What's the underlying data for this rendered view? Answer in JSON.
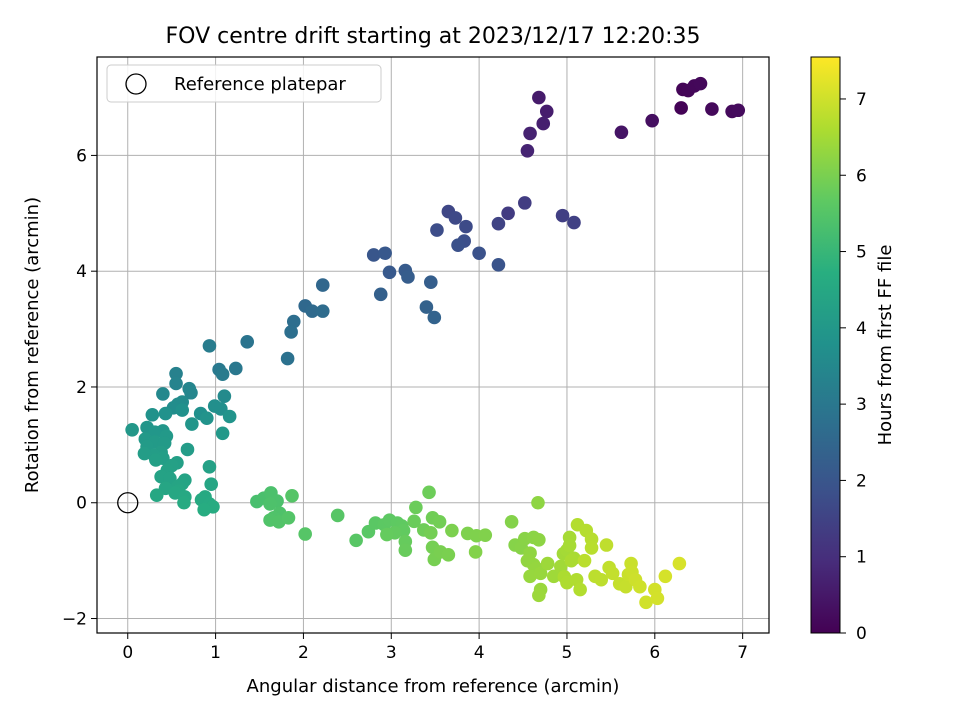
{
  "chart_data": {
    "type": "scatter",
    "title": "FOV centre drift starting at 2023/12/17 12:20:35",
    "xlabel": "Angular distance from reference (arcmin)",
    "ylabel": "Rotation from reference (arcmin)",
    "xlim": [
      -0.35,
      7.3
    ],
    "ylim": [
      -2.25,
      7.7
    ],
    "xticks": [
      0,
      1,
      2,
      3,
      4,
      5,
      6,
      7
    ],
    "yticks": [
      -2,
      0,
      2,
      4,
      6
    ],
    "grid": true,
    "legend": {
      "position": "top-left",
      "entries": [
        "Reference platepar"
      ]
    },
    "reference_point": {
      "x": 0,
      "y": 0,
      "label": "Reference platepar"
    },
    "colorbar": {
      "label": "Hours from first FF file",
      "colormap": "viridis",
      "range": [
        0,
        7.55
      ],
      "ticks": [
        0,
        1,
        2,
        3,
        4,
        5,
        6,
        7
      ]
    },
    "points": [
      {
        "x": 6.3,
        "y": 6.82,
        "c": 0.05
      },
      {
        "x": 6.32,
        "y": 7.14,
        "c": 0.08
      },
      {
        "x": 6.38,
        "y": 7.12,
        "c": 0.1
      },
      {
        "x": 6.45,
        "y": 7.2,
        "c": 0.12
      },
      {
        "x": 6.52,
        "y": 7.24,
        "c": 0.15
      },
      {
        "x": 6.65,
        "y": 6.8,
        "c": 0.18
      },
      {
        "x": 6.88,
        "y": 6.76,
        "c": 0.2
      },
      {
        "x": 6.95,
        "y": 6.78,
        "c": 0.22
      },
      {
        "x": 5.97,
        "y": 6.6,
        "c": 0.3
      },
      {
        "x": 5.62,
        "y": 6.4,
        "c": 0.4
      },
      {
        "x": 4.68,
        "y": 7.0,
        "c": 0.55
      },
      {
        "x": 4.77,
        "y": 6.76,
        "c": 0.6
      },
      {
        "x": 4.73,
        "y": 6.55,
        "c": 0.65
      },
      {
        "x": 4.58,
        "y": 6.38,
        "c": 0.7
      },
      {
        "x": 4.55,
        "y": 6.08,
        "c": 0.75
      },
      {
        "x": 4.33,
        "y": 5.0,
        "c": 1.3
      },
      {
        "x": 4.52,
        "y": 5.18,
        "c": 1.35
      },
      {
        "x": 4.95,
        "y": 4.96,
        "c": 1.4
      },
      {
        "x": 5.08,
        "y": 4.84,
        "c": 1.45
      },
      {
        "x": 4.22,
        "y": 4.82,
        "c": 1.5
      },
      {
        "x": 3.65,
        "y": 5.03,
        "c": 1.6
      },
      {
        "x": 3.73,
        "y": 4.92,
        "c": 1.65
      },
      {
        "x": 3.85,
        "y": 4.77,
        "c": 1.7
      },
      {
        "x": 3.52,
        "y": 4.71,
        "c": 1.75
      },
      {
        "x": 3.83,
        "y": 4.52,
        "c": 1.8
      },
      {
        "x": 3.76,
        "y": 4.45,
        "c": 1.85
      },
      {
        "x": 4.0,
        "y": 4.31,
        "c": 1.9
      },
      {
        "x": 4.22,
        "y": 4.11,
        "c": 1.95
      },
      {
        "x": 2.8,
        "y": 4.28,
        "c": 2.0
      },
      {
        "x": 2.93,
        "y": 4.31,
        "c": 2.05
      },
      {
        "x": 2.98,
        "y": 3.98,
        "c": 2.1
      },
      {
        "x": 3.16,
        "y": 4.01,
        "c": 2.15
      },
      {
        "x": 3.19,
        "y": 3.9,
        "c": 2.2
      },
      {
        "x": 3.45,
        "y": 3.81,
        "c": 2.25
      },
      {
        "x": 2.88,
        "y": 3.6,
        "c": 2.3
      },
      {
        "x": 3.4,
        "y": 3.38,
        "c": 2.35
      },
      {
        "x": 3.49,
        "y": 3.2,
        "c": 2.4
      },
      {
        "x": 2.22,
        "y": 3.76,
        "c": 2.5
      },
      {
        "x": 2.02,
        "y": 3.4,
        "c": 2.55
      },
      {
        "x": 2.1,
        "y": 3.31,
        "c": 2.6
      },
      {
        "x": 2.22,
        "y": 3.31,
        "c": 2.65
      },
      {
        "x": 1.89,
        "y": 3.13,
        "c": 2.7
      },
      {
        "x": 1.86,
        "y": 2.95,
        "c": 2.75
      },
      {
        "x": 1.82,
        "y": 2.49,
        "c": 2.8
      },
      {
        "x": 1.36,
        "y": 2.78,
        "c": 2.9
      },
      {
        "x": 1.23,
        "y": 2.32,
        "c": 3.0
      },
      {
        "x": 1.04,
        "y": 2.3,
        "c": 3.05
      },
      {
        "x": 1.08,
        "y": 2.22,
        "c": 3.1
      },
      {
        "x": 0.93,
        "y": 2.71,
        "c": 3.15
      },
      {
        "x": 0.55,
        "y": 2.23,
        "c": 3.3
      },
      {
        "x": 0.55,
        "y": 2.06,
        "c": 3.35
      },
      {
        "x": 0.7,
        "y": 1.97,
        "c": 3.4
      },
      {
        "x": 0.72,
        "y": 1.9,
        "c": 3.45
      },
      {
        "x": 0.4,
        "y": 1.88,
        "c": 3.5
      },
      {
        "x": 1.1,
        "y": 1.84,
        "c": 3.55
      },
      {
        "x": 0.62,
        "y": 1.74,
        "c": 3.6
      },
      {
        "x": 0.57,
        "y": 1.7,
        "c": 3.62
      },
      {
        "x": 0.52,
        "y": 1.64,
        "c": 3.65
      },
      {
        "x": 0.99,
        "y": 1.67,
        "c": 3.7
      },
      {
        "x": 1.06,
        "y": 1.62,
        "c": 3.72
      },
      {
        "x": 0.83,
        "y": 1.54,
        "c": 3.75
      },
      {
        "x": 0.62,
        "y": 1.6,
        "c": 3.78
      },
      {
        "x": 0.43,
        "y": 1.54,
        "c": 3.8
      },
      {
        "x": 0.28,
        "y": 1.52,
        "c": 3.82
      },
      {
        "x": 0.9,
        "y": 1.46,
        "c": 3.85
      },
      {
        "x": 1.16,
        "y": 1.49,
        "c": 3.88
      },
      {
        "x": 0.73,
        "y": 1.36,
        "c": 3.9
      },
      {
        "x": 0.22,
        "y": 1.3,
        "c": 3.92
      },
      {
        "x": 0.4,
        "y": 1.24,
        "c": 3.94
      },
      {
        "x": 0.31,
        "y": 1.22,
        "c": 3.96
      },
      {
        "x": 0.05,
        "y": 1.26,
        "c": 3.98
      },
      {
        "x": 1.08,
        "y": 1.2,
        "c": 4.0
      },
      {
        "x": 0.44,
        "y": 1.15,
        "c": 4.02
      },
      {
        "x": 0.2,
        "y": 1.1,
        "c": 4.04
      },
      {
        "x": 0.31,
        "y": 1.05,
        "c": 4.06
      },
      {
        "x": 0.42,
        "y": 1.03,
        "c": 4.08
      },
      {
        "x": 0.22,
        "y": 0.97,
        "c": 4.1
      },
      {
        "x": 0.68,
        "y": 0.92,
        "c": 4.12
      },
      {
        "x": 0.38,
        "y": 0.87,
        "c": 4.14
      },
      {
        "x": 0.3,
        "y": 0.82,
        "c": 4.16
      },
      {
        "x": 0.19,
        "y": 0.85,
        "c": 4.18
      },
      {
        "x": 0.4,
        "y": 0.77,
        "c": 4.2
      },
      {
        "x": 0.32,
        "y": 0.74,
        "c": 4.22
      },
      {
        "x": 0.56,
        "y": 0.69,
        "c": 4.24
      },
      {
        "x": 0.5,
        "y": 0.64,
        "c": 4.26
      },
      {
        "x": 0.93,
        "y": 0.62,
        "c": 4.28
      },
      {
        "x": 0.45,
        "y": 0.56,
        "c": 4.3
      },
      {
        "x": 0.38,
        "y": 0.45,
        "c": 4.32
      },
      {
        "x": 0.48,
        "y": 0.42,
        "c": 4.34
      },
      {
        "x": 0.65,
        "y": 0.39,
        "c": 4.36
      },
      {
        "x": 0.62,
        "y": 0.33,
        "c": 4.38
      },
      {
        "x": 0.57,
        "y": 0.28,
        "c": 4.4
      },
      {
        "x": 0.95,
        "y": 0.32,
        "c": 4.42
      },
      {
        "x": 0.43,
        "y": 0.25,
        "c": 4.44
      },
      {
        "x": 0.58,
        "y": 0.2,
        "c": 4.46
      },
      {
        "x": 0.54,
        "y": 0.17,
        "c": 4.48
      },
      {
        "x": 0.33,
        "y": 0.13,
        "c": 4.5
      },
      {
        "x": 0.65,
        "y": 0.1,
        "c": 4.52
      },
      {
        "x": 0.88,
        "y": 0.1,
        "c": 4.54
      },
      {
        "x": 0.84,
        "y": 0.05,
        "c": 4.56
      },
      {
        "x": 0.64,
        "y": 0.0,
        "c": 4.58
      },
      {
        "x": 0.93,
        "y": -0.02,
        "c": 4.6
      },
      {
        "x": 0.97,
        "y": -0.07,
        "c": 4.62
      },
      {
        "x": 0.87,
        "y": -0.12,
        "c": 4.64
      },
      {
        "x": 1.47,
        "y": 0.02,
        "c": 5.3
      },
      {
        "x": 1.55,
        "y": 0.08,
        "c": 5.32
      },
      {
        "x": 1.63,
        "y": 0.17,
        "c": 5.34
      },
      {
        "x": 1.7,
        "y": 0.03,
        "c": 5.36
      },
      {
        "x": 1.62,
        "y": -0.02,
        "c": 5.38
      },
      {
        "x": 1.73,
        "y": -0.18,
        "c": 5.4
      },
      {
        "x": 1.66,
        "y": -0.26,
        "c": 5.42
      },
      {
        "x": 1.62,
        "y": -0.3,
        "c": 5.44
      },
      {
        "x": 1.72,
        "y": -0.33,
        "c": 5.46
      },
      {
        "x": 1.83,
        "y": -0.26,
        "c": 5.48
      },
      {
        "x": 1.87,
        "y": 0.12,
        "c": 5.5
      },
      {
        "x": 2.02,
        "y": -0.54,
        "c": 5.52
      },
      {
        "x": 2.39,
        "y": -0.22,
        "c": 5.54
      },
      {
        "x": 2.6,
        "y": -0.65,
        "c": 5.56
      },
      {
        "x": 2.74,
        "y": -0.5,
        "c": 5.58
      },
      {
        "x": 2.82,
        "y": -0.35,
        "c": 5.6
      },
      {
        "x": 2.92,
        "y": -0.38,
        "c": 5.62
      },
      {
        "x": 2.98,
        "y": -0.3,
        "c": 5.64
      },
      {
        "x": 3.07,
        "y": -0.35,
        "c": 5.66
      },
      {
        "x": 3.12,
        "y": -0.4,
        "c": 5.68
      },
      {
        "x": 3.14,
        "y": -0.48,
        "c": 5.7
      },
      {
        "x": 3.04,
        "y": -0.52,
        "c": 5.72
      },
      {
        "x": 2.95,
        "y": -0.55,
        "c": 5.74
      },
      {
        "x": 3.16,
        "y": -0.67,
        "c": 5.76
      },
      {
        "x": 3.16,
        "y": -0.82,
        "c": 5.78
      },
      {
        "x": 3.26,
        "y": -0.32,
        "c": 5.8
      },
      {
        "x": 3.28,
        "y": -0.08,
        "c": 5.82
      },
      {
        "x": 3.43,
        "y": 0.18,
        "c": 5.84
      },
      {
        "x": 3.37,
        "y": -0.47,
        "c": 5.86
      },
      {
        "x": 3.47,
        "y": -0.26,
        "c": 5.88
      },
      {
        "x": 3.55,
        "y": -0.33,
        "c": 5.9
      },
      {
        "x": 3.45,
        "y": -0.52,
        "c": 5.92
      },
      {
        "x": 3.47,
        "y": -0.77,
        "c": 5.94
      },
      {
        "x": 3.49,
        "y": -0.98,
        "c": 5.96
      },
      {
        "x": 3.56,
        "y": -0.85,
        "c": 5.98
      },
      {
        "x": 3.65,
        "y": -0.9,
        "c": 6.0
      },
      {
        "x": 3.69,
        "y": -0.48,
        "c": 6.02
      },
      {
        "x": 3.87,
        "y": -0.53,
        "c": 6.04
      },
      {
        "x": 3.97,
        "y": -0.57,
        "c": 6.06
      },
      {
        "x": 4.07,
        "y": -0.56,
        "c": 6.08
      },
      {
        "x": 3.96,
        "y": -0.85,
        "c": 6.1
      },
      {
        "x": 4.37,
        "y": -0.33,
        "c": 6.12
      },
      {
        "x": 4.41,
        "y": -0.73,
        "c": 6.14
      },
      {
        "x": 4.48,
        "y": -0.78,
        "c": 6.16
      },
      {
        "x": 4.52,
        "y": -0.62,
        "c": 6.18
      },
      {
        "x": 4.62,
        "y": -0.6,
        "c": 6.2
      },
      {
        "x": 4.68,
        "y": -0.64,
        "c": 6.22
      },
      {
        "x": 4.67,
        "y": 0.0,
        "c": 6.24
      },
      {
        "x": 4.58,
        "y": -0.87,
        "c": 6.26
      },
      {
        "x": 4.55,
        "y": -1.0,
        "c": 6.28
      },
      {
        "x": 4.62,
        "y": -1.07,
        "c": 6.3
      },
      {
        "x": 4.65,
        "y": -1.13,
        "c": 6.32
      },
      {
        "x": 4.58,
        "y": -1.27,
        "c": 6.34
      },
      {
        "x": 4.7,
        "y": -1.22,
        "c": 6.36
      },
      {
        "x": 4.7,
        "y": -1.5,
        "c": 6.38
      },
      {
        "x": 4.68,
        "y": -1.6,
        "c": 6.4
      },
      {
        "x": 4.78,
        "y": -1.05,
        "c": 6.42
      },
      {
        "x": 4.85,
        "y": -1.27,
        "c": 6.44
      },
      {
        "x": 4.93,
        "y": -1.1,
        "c": 6.46
      },
      {
        "x": 4.96,
        "y": -0.88,
        "c": 6.48
      },
      {
        "x": 5.0,
        "y": -0.82,
        "c": 6.5
      },
      {
        "x": 5.03,
        "y": -0.6,
        "c": 6.52
      },
      {
        "x": 5.03,
        "y": -0.74,
        "c": 6.54
      },
      {
        "x": 5.08,
        "y": -0.96,
        "c": 6.56
      },
      {
        "x": 5.05,
        "y": -1.0,
        "c": 6.58
      },
      {
        "x": 4.97,
        "y": -1.28,
        "c": 6.6
      },
      {
        "x": 5.0,
        "y": -1.38,
        "c": 6.62
      },
      {
        "x": 5.11,
        "y": -1.33,
        "c": 6.64
      },
      {
        "x": 5.15,
        "y": -1.5,
        "c": 6.66
      },
      {
        "x": 5.12,
        "y": -0.38,
        "c": 6.68
      },
      {
        "x": 5.22,
        "y": -0.48,
        "c": 6.7
      },
      {
        "x": 5.28,
        "y": -0.63,
        "c": 6.72
      },
      {
        "x": 5.28,
        "y": -0.78,
        "c": 6.74
      },
      {
        "x": 5.2,
        "y": -1.0,
        "c": 6.76
      },
      {
        "x": 5.32,
        "y": -1.27,
        "c": 6.78
      },
      {
        "x": 5.39,
        "y": -1.33,
        "c": 6.8
      },
      {
        "x": 5.45,
        "y": -0.73,
        "c": 6.82
      },
      {
        "x": 5.48,
        "y": -1.12,
        "c": 6.84
      },
      {
        "x": 5.52,
        "y": -1.22,
        "c": 6.86
      },
      {
        "x": 5.6,
        "y": -1.4,
        "c": 6.88
      },
      {
        "x": 5.67,
        "y": -1.45,
        "c": 6.9
      },
      {
        "x": 5.7,
        "y": -1.24,
        "c": 6.92
      },
      {
        "x": 5.73,
        "y": -1.05,
        "c": 6.94
      },
      {
        "x": 5.74,
        "y": -1.2,
        "c": 6.96
      },
      {
        "x": 5.78,
        "y": -1.33,
        "c": 6.98
      },
      {
        "x": 5.83,
        "y": -1.45,
        "c": 7.0
      },
      {
        "x": 5.9,
        "y": -1.72,
        "c": 7.02
      },
      {
        "x": 6.0,
        "y": -1.5,
        "c": 7.04
      },
      {
        "x": 6.03,
        "y": -1.65,
        "c": 7.06
      },
      {
        "x": 6.12,
        "y": -1.27,
        "c": 7.08
      },
      {
        "x": 6.28,
        "y": -1.05,
        "c": 7.1
      }
    ]
  }
}
